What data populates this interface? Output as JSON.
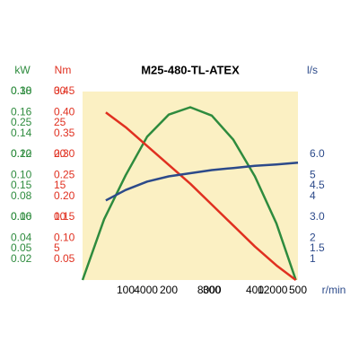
{
  "chart_data": {
    "type": "line",
    "title": "M25-480-TL-ATEX",
    "background": "#fbf0c3",
    "xlabel": "r/min",
    "xlim": [
      0,
      500
    ],
    "xticks": [
      100,
      200,
      300,
      400,
      500
    ],
    "x2lim": [
      0,
      13600
    ],
    "x2ticks": [
      4000,
      8000,
      12000
    ],
    "axes": [
      {
        "label": "kW",
        "color": "#2e8b3e",
        "lim": [
          0,
          0.18
        ],
        "ticks": [
          0.02,
          0.04,
          0.06,
          0.08,
          {
            "value": 0.1,
            "label": "0.10"
          },
          0.12,
          0.14,
          0.16,
          0.18
        ]
      },
      {
        "color": "#2e8b3e",
        "lim": [
          0,
          0.3
        ],
        "ticks": [
          0.05,
          {
            "value": 0.1,
            "label": "0.10"
          },
          0.15,
          {
            "value": 0.2,
            "label": "0.20"
          },
          0.25,
          {
            "value": 0.3,
            "label": "0.30"
          }
        ]
      },
      {
        "label": "Nm",
        "color": "#e03020",
        "lim": [
          0,
          0.45
        ],
        "ticks": [
          0.05,
          {
            "value": 0.1,
            "label": "0.10"
          },
          0.15,
          {
            "value": 0.2,
            "label": "0.20"
          },
          0.25,
          {
            "value": 0.3,
            "label": "0.30"
          },
          0.35,
          {
            "value": 0.4,
            "label": "0.40"
          },
          0.45
        ]
      },
      {
        "color": "#e03020",
        "lim": [
          0,
          30
        ],
        "ticks": [
          5,
          10,
          15,
          20,
          25,
          30
        ]
      },
      {
        "label": "l/s",
        "color": "#2c4a8a",
        "lim": [
          0,
          9
        ],
        "ticks": [
          1,
          1.5,
          2,
          {
            "value": 3,
            "label": "3.0"
          },
          4,
          4.5,
          5,
          {
            "value": 6,
            "label": "6.0"
          }
        ]
      }
    ],
    "series": [
      {
        "axis": 0,
        "color": "#2e8b3e",
        "x": [
          0,
          50,
          100,
          150,
          200,
          250,
          300,
          350,
          400,
          450,
          495
        ],
        "values": [
          0,
          0.058,
          0.1,
          0.137,
          0.158,
          0.165,
          0.157,
          0.134,
          0.099,
          0.054,
          0
        ]
      },
      {
        "axis": 2,
        "color": "#e03020",
        "x": [
          54,
          100,
          150,
          200,
          250,
          300,
          350,
          400,
          450,
          495
        ],
        "values": [
          0.4,
          0.365,
          0.32,
          0.275,
          0.23,
          0.18,
          0.13,
          0.08,
          0.035,
          0
        ]
      },
      {
        "axis": 4,
        "color": "#2c4a8a",
        "x": [
          54,
          100,
          150,
          200,
          250,
          300,
          350,
          400,
          450,
          500
        ],
        "values": [
          3.8,
          4.3,
          4.7,
          4.95,
          5.1,
          5.25,
          5.35,
          5.45,
          5.52,
          5.6
        ]
      }
    ]
  }
}
